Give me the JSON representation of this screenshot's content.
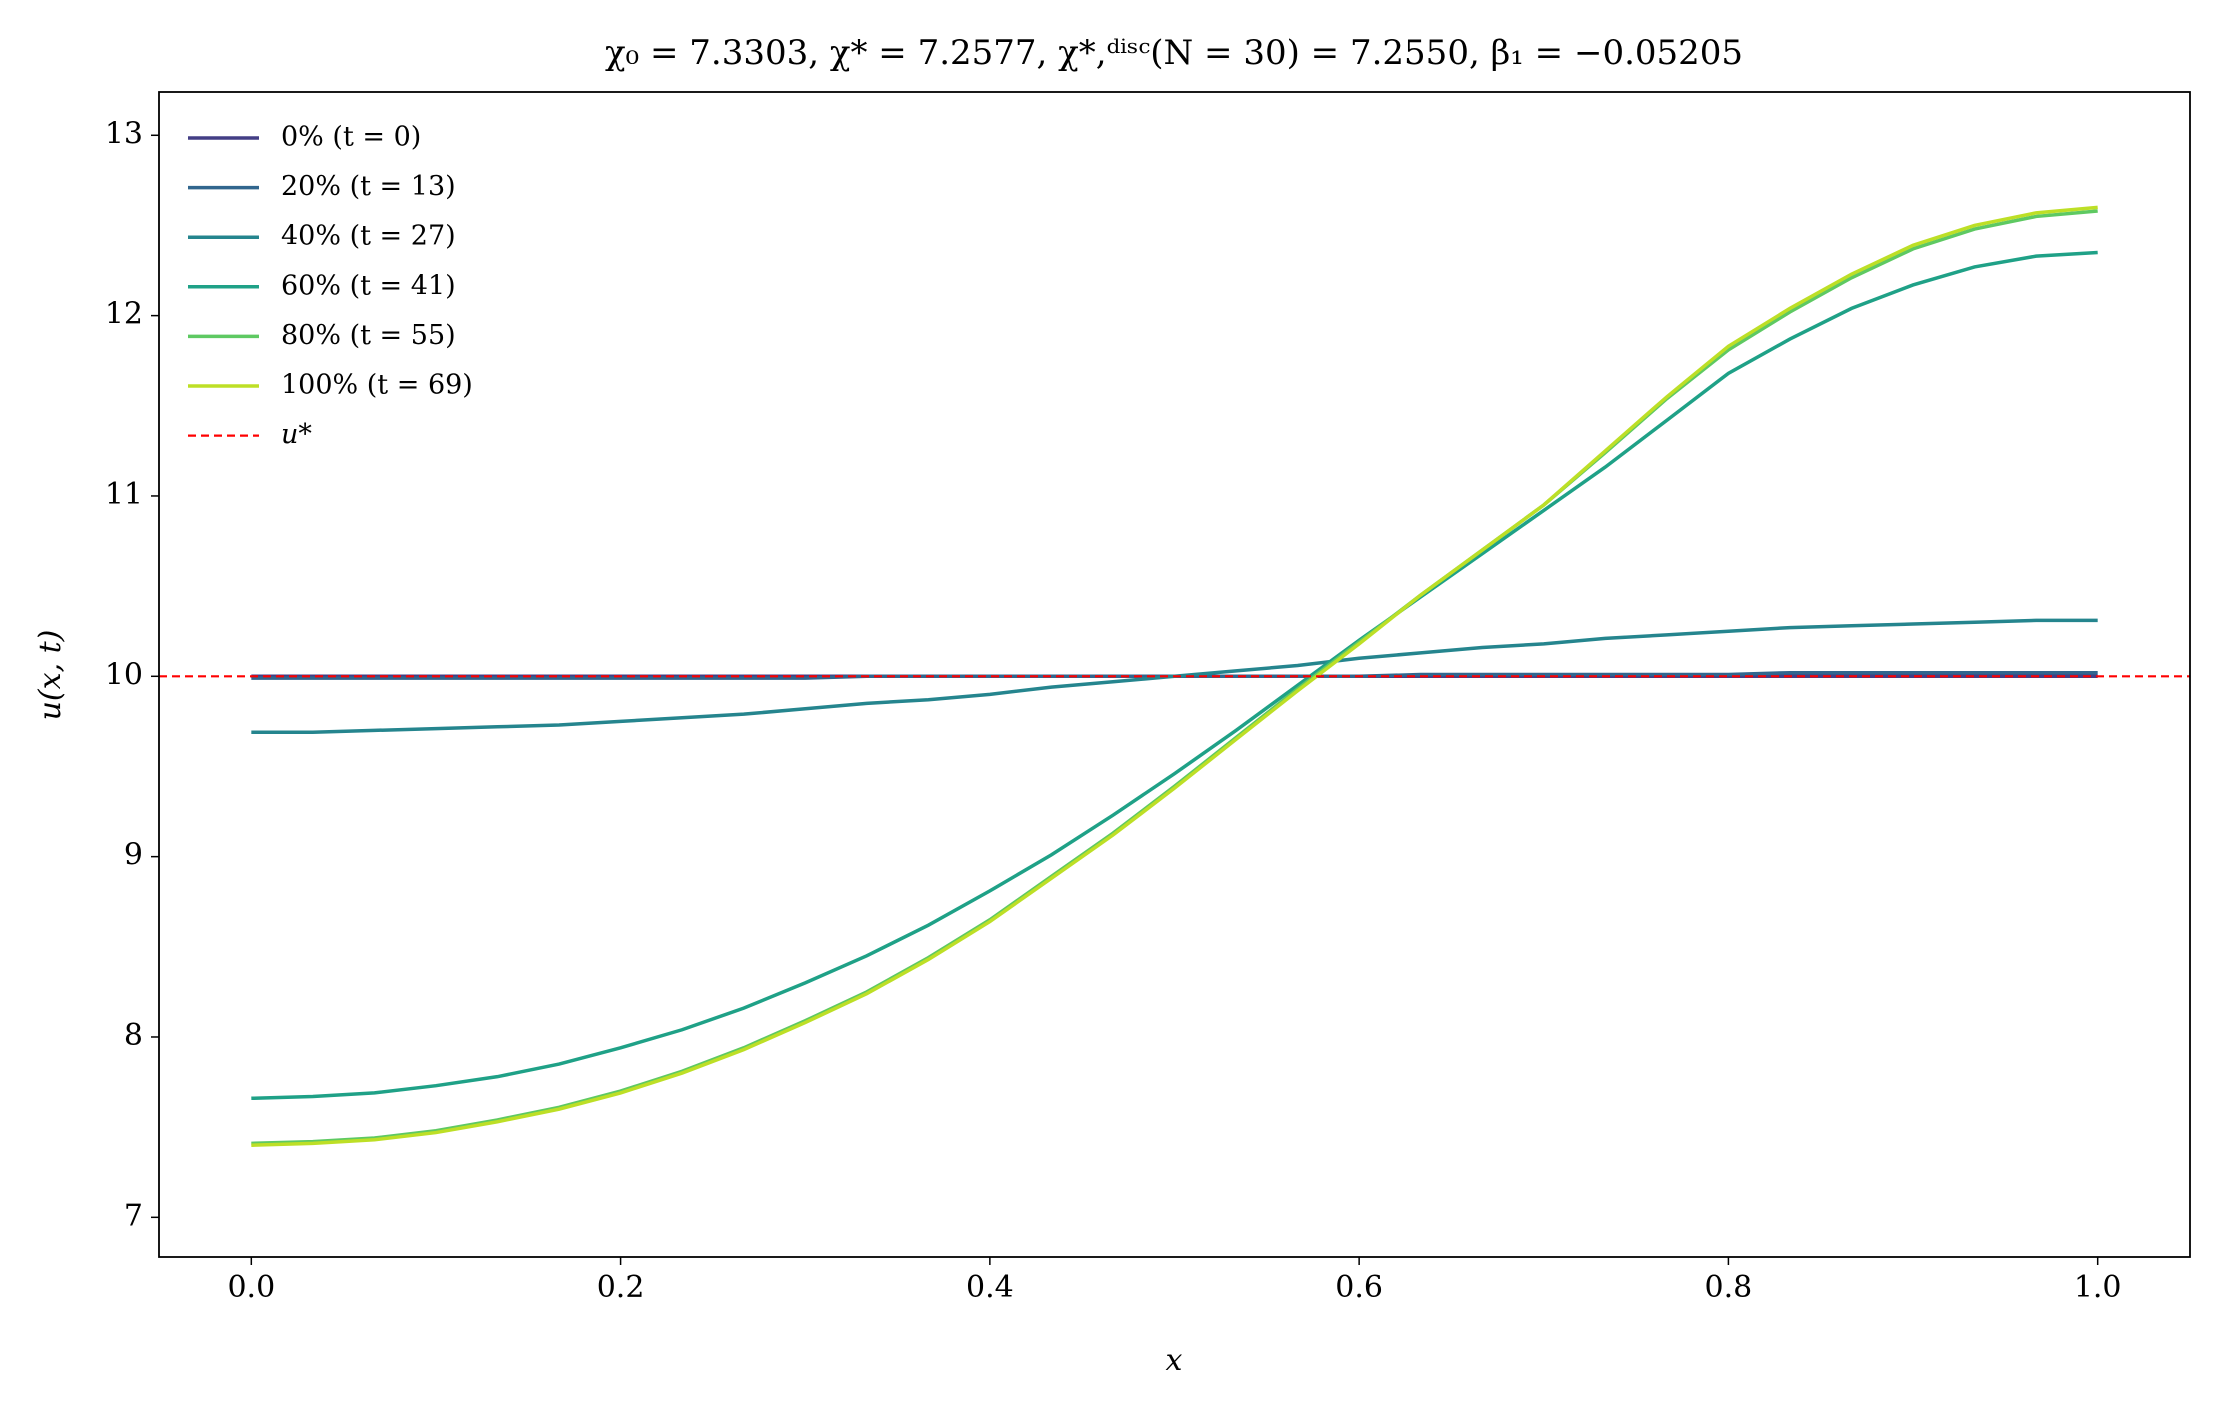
{
  "chart_data": {
    "type": "line",
    "title": "χ₀ = 7.3303,  χ* = 7.2577,  χ*,ᵈⁱˢᶜ(N = 30) = 7.2550,  β₁ = −0.05205",
    "xlabel": "x",
    "ylabel": "u(x, t)",
    "x": [
      0,
      0.0333,
      0.0667,
      0.1,
      0.1333,
      0.1667,
      0.2,
      0.2333,
      0.2667,
      0.3,
      0.3333,
      0.3667,
      0.4,
      0.4333,
      0.4667,
      0.5,
      0.5333,
      0.5667,
      0.6,
      0.6333,
      0.6667,
      0.7,
      0.7333,
      0.7667,
      0.8,
      0.8333,
      0.8667,
      0.9,
      0.9333,
      0.9667,
      1
    ],
    "series": [
      {
        "name": "0% (t = 0)",
        "color": "#433e85",
        "values": [
          10,
          10,
          10,
          10,
          10,
          10,
          10,
          10,
          10,
          10,
          10,
          10,
          10,
          10,
          10,
          10,
          10,
          10,
          10,
          10,
          10,
          10,
          10,
          10,
          10,
          10,
          10,
          10,
          10,
          10,
          10
        ]
      },
      {
        "name": "20% (t = 13)",
        "color": "#31668e",
        "values": [
          9.99,
          9.99,
          9.99,
          9.99,
          9.99,
          9.99,
          9.99,
          9.99,
          9.99,
          9.99,
          10,
          10,
          10,
          10,
          10,
          10,
          10,
          10,
          10,
          10.01,
          10.01,
          10.01,
          10.01,
          10.01,
          10.01,
          10.02,
          10.02,
          10.02,
          10.02,
          10.02,
          10.02
        ]
      },
      {
        "name": "40% (t = 27)",
        "color": "#25858e",
        "values": [
          9.69,
          9.69,
          9.7,
          9.71,
          9.72,
          9.73,
          9.75,
          9.77,
          9.79,
          9.82,
          9.85,
          9.87,
          9.9,
          9.94,
          9.97,
          10,
          10.03,
          10.06,
          10.1,
          10.13,
          10.16,
          10.18,
          10.21,
          10.23,
          10.25,
          10.27,
          10.28,
          10.29,
          10.3,
          10.31,
          10.31
        ]
      },
      {
        "name": "60% (t = 41)",
        "color": "#1fa187",
        "values": [
          7.66,
          7.67,
          7.69,
          7.73,
          7.78,
          7.85,
          7.94,
          8.04,
          8.16,
          8.3,
          8.45,
          8.62,
          8.81,
          9.01,
          9.23,
          9.46,
          9.7,
          9.95,
          10.2,
          10.44,
          10.68,
          10.92,
          11.16,
          11.42,
          11.68,
          11.87,
          12.04,
          12.17,
          12.27,
          12.33,
          12.35
        ]
      },
      {
        "name": "80% (t = 55)",
        "color": "#5ec962",
        "values": [
          7.41,
          7.42,
          7.44,
          7.48,
          7.54,
          7.61,
          7.7,
          7.81,
          7.94,
          8.09,
          8.25,
          8.44,
          8.65,
          8.89,
          9.13,
          9.39,
          9.66,
          9.93,
          10.19,
          10.45,
          10.7,
          10.95,
          11.24,
          11.54,
          11.81,
          12.02,
          12.21,
          12.37,
          12.48,
          12.55,
          12.58
        ]
      },
      {
        "name": "100% (t = 69)",
        "color": "#bddf26",
        "values": [
          7.4,
          7.41,
          7.43,
          7.47,
          7.53,
          7.6,
          7.69,
          7.8,
          7.93,
          8.08,
          8.24,
          8.43,
          8.64,
          8.88,
          9.12,
          9.38,
          9.65,
          9.92,
          10.18,
          10.45,
          10.7,
          10.95,
          11.25,
          11.55,
          11.83,
          12.04,
          12.23,
          12.39,
          12.5,
          12.57,
          12.6
        ]
      }
    ],
    "reference_line": {
      "name": "u*",
      "value": 10,
      "color": "#ff0000"
    },
    "xlim": [
      -0.05,
      1.05
    ],
    "xticks": [
      {
        "value": 0,
        "label": "0.0"
      },
      0.2,
      0.4,
      0.6,
      0.8,
      {
        "value": 1,
        "label": "1.0"
      }
    ],
    "ylim": [
      6.78,
      13.24
    ],
    "yticks": [
      7,
      8,
      9,
      10,
      11,
      12,
      13
    ],
    "legend": "upper-left"
  }
}
